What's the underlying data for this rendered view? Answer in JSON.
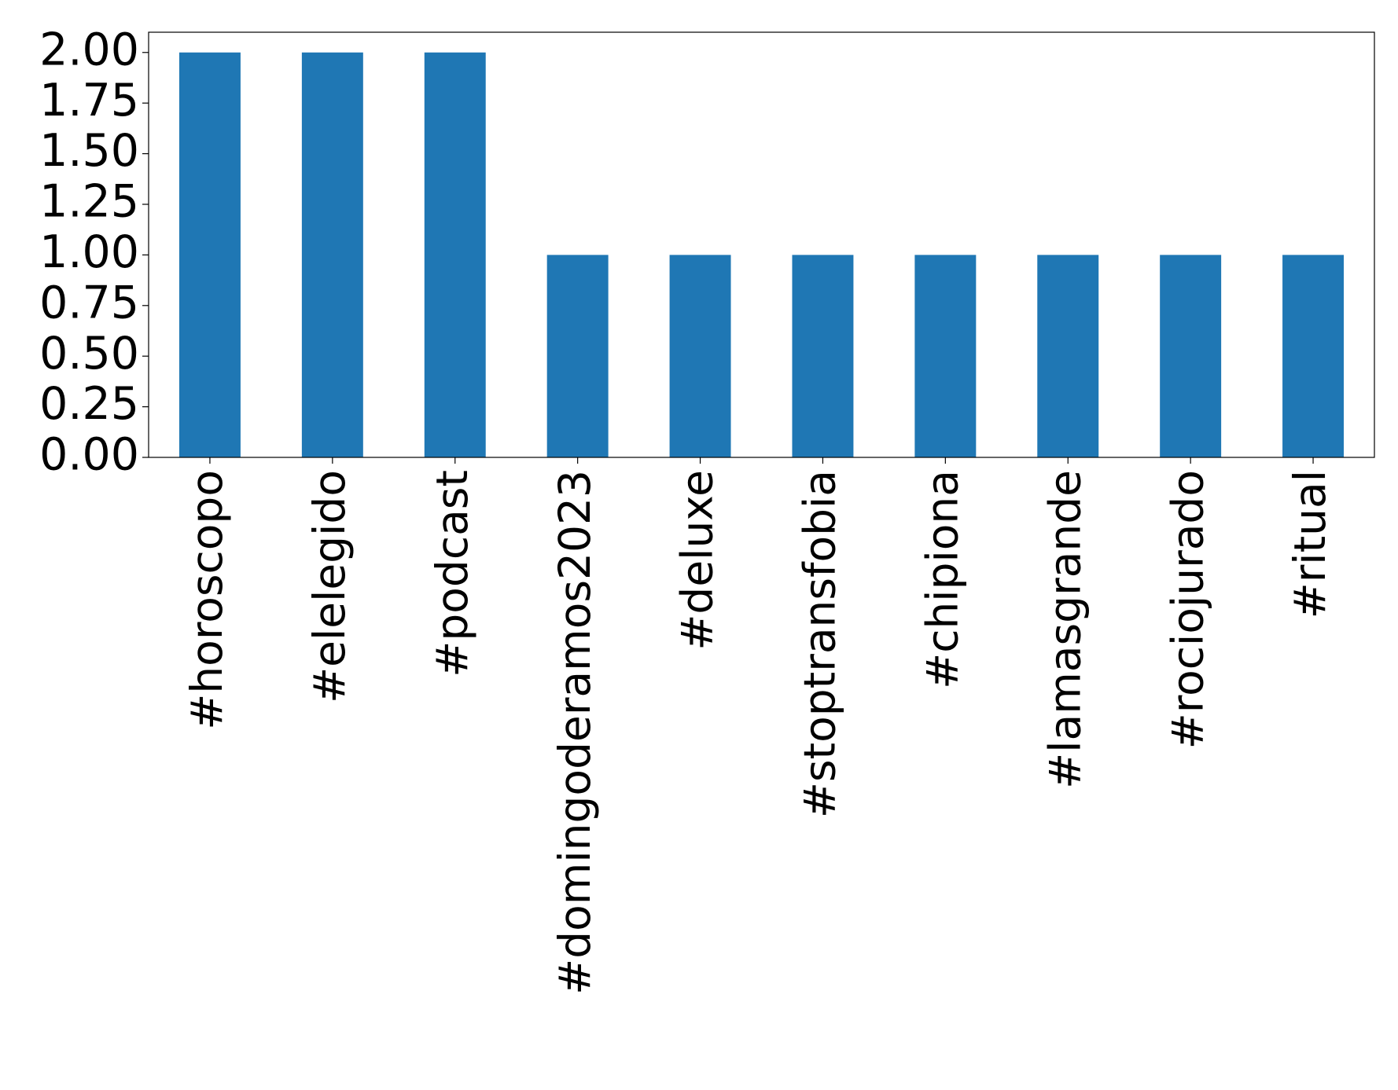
{
  "chart_data": {
    "type": "bar",
    "categories": [
      "#horoscopo",
      "#elelegido",
      "#podcast",
      "#domingoderamos2023",
      "#deluxe",
      "#stoptransfobia",
      "#chipiona",
      "#lamasgrande",
      "#rociojurado",
      "#ritual"
    ],
    "values": [
      2,
      2,
      2,
      1,
      1,
      1,
      1,
      1,
      1,
      1
    ],
    "color": "#1f77b4",
    "ylim": [
      0,
      2.1
    ],
    "yticks": [
      {
        "value": 0,
        "label": "0.00"
      },
      {
        "value": 0.25,
        "label": "0.25"
      },
      {
        "value": 0.5,
        "label": "0.50"
      },
      {
        "value": 0.75,
        "label": "0.75"
      },
      {
        "value": 1,
        "label": "1.00"
      },
      {
        "value": 1.25,
        "label": "1.25"
      },
      {
        "value": 1.5,
        "label": "1.50"
      },
      {
        "value": 1.75,
        "label": "1.75"
      },
      {
        "value": 2,
        "label": "2.00"
      }
    ],
    "grid": false
  }
}
